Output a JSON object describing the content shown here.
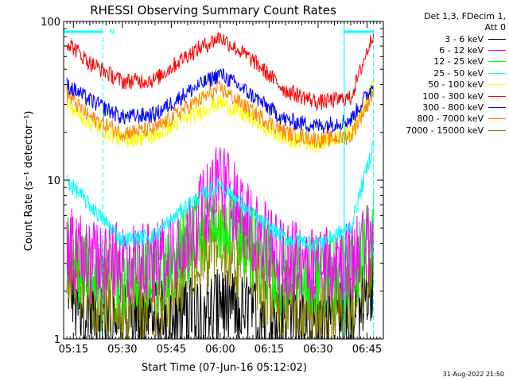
{
  "chart_data": {
    "type": "line",
    "title": "RHESSI Observing Summary Count Rates",
    "xlabel": "Start Time (07-Jun-16 05:12:02)",
    "ylabel": "Count Rate (s⁻¹ detector⁻¹)",
    "yscale": "log",
    "ylim": [
      1,
      100
    ],
    "xlim_minutes": [
      "05:12",
      "06:50"
    ],
    "x_ticks": [
      "05:15",
      "05:30",
      "05:45",
      "06:00",
      "06:15",
      "06:30",
      "06:45"
    ],
    "y_ticks": [
      "1",
      "10",
      "100"
    ],
    "legend_header": [
      "Det 1,3, FDecim 1,",
      "Att 0"
    ],
    "series": [
      {
        "name": "3 - 6 keV",
        "color": "#000000",
        "x": [
          "05:13",
          "05:20",
          "05:30",
          "05:40",
          "05:50",
          "06:00",
          "06:10",
          "06:20",
          "06:30",
          "06:40",
          "06:47"
        ],
        "values": [
          2.5,
          1.6,
          1.5,
          1.5,
          1.6,
          1.8,
          1.6,
          1.5,
          1.5,
          1.6,
          2.6
        ]
      },
      {
        "name": "6 - 12 keV",
        "color": "#ff00ff",
        "x": [
          "05:13",
          "05:20",
          "05:30",
          "05:40",
          "05:50",
          "06:00",
          "06:10",
          "06:20",
          "06:30",
          "06:40",
          "06:47"
        ],
        "values": [
          4.5,
          3.6,
          3.5,
          3.6,
          5.0,
          12,
          5.5,
          3.7,
          3.5,
          3.6,
          5.0
        ]
      },
      {
        "name": "12 - 25 keV",
        "color": "#00ff00",
        "x": [
          "05:13",
          "05:20",
          "05:30",
          "05:40",
          "05:50",
          "06:00",
          "06:10",
          "06:20",
          "06:30",
          "06:40",
          "06:47"
        ],
        "values": [
          4.0,
          3.0,
          2.8,
          2.9,
          4.5,
          7.0,
          4.5,
          3.0,
          2.9,
          3.0,
          5.5
        ]
      },
      {
        "name": "25 - 50 keV",
        "color": "#00ffff",
        "x": [
          "05:13",
          "05:20",
          "05:30",
          "05:40",
          "05:50",
          "06:00",
          "06:10",
          "06:20",
          "06:30",
          "06:40",
          "06:47"
        ],
        "values": [
          10,
          7.0,
          4.2,
          4.5,
          7.0,
          9.5,
          6.0,
          4.3,
          4.0,
          5.0,
          17
        ]
      },
      {
        "name": "50 - 100 keV",
        "color": "#ffff00",
        "x": [
          "05:13",
          "05:20",
          "05:30",
          "05:40",
          "05:50",
          "06:00",
          "06:10",
          "06:20",
          "06:30",
          "06:40",
          "06:47"
        ],
        "values": [
          30,
          23,
          18,
          19,
          25,
          31,
          24,
          18,
          17,
          20,
          40
        ]
      },
      {
        "name": "100 - 300 keV",
        "color": "#ff0000",
        "x": [
          "05:13",
          "05:20",
          "05:30",
          "05:40",
          "05:50",
          "06:00",
          "06:10",
          "06:20",
          "06:30",
          "06:40",
          "06:47"
        ],
        "values": [
          75,
          55,
          42,
          43,
          62,
          80,
          57,
          37,
          31,
          33,
          85
        ]
      },
      {
        "name": "300 - 800 keV",
        "color": "#0000ff",
        "x": [
          "05:13",
          "05:20",
          "05:30",
          "05:40",
          "05:50",
          "06:00",
          "06:10",
          "06:20",
          "06:30",
          "06:40",
          "06:47"
        ],
        "values": [
          40,
          32,
          25,
          26,
          36,
          47,
          34,
          24,
          22,
          24,
          40
        ]
      },
      {
        "name": "800 - 7000 keV",
        "color": "#ff8800",
        "x": [
          "05:13",
          "05:20",
          "05:30",
          "05:40",
          "05:50",
          "06:00",
          "06:10",
          "06:20",
          "06:30",
          "06:40",
          "06:47"
        ],
        "values": [
          35,
          25,
          20,
          21,
          29,
          38,
          27,
          20,
          18,
          19,
          36
        ]
      },
      {
        "name": "7000 - 15000 keV",
        "color": "#888800",
        "x": [
          "05:13",
          "05:20",
          "05:30",
          "05:40",
          "05:50",
          "06:00",
          "06:10",
          "06:20",
          "06:30",
          "06:40",
          "06:47"
        ],
        "values": [
          4.0,
          2.5,
          1.8,
          1.9,
          3.5,
          5.0,
          3.0,
          2.0,
          1.8,
          2.0,
          4.0
        ]
      }
    ],
    "annotations": [
      {
        "text": "N",
        "time": "05:24"
      }
    ],
    "vertical_markers": [
      "05:24",
      "06:38",
      "06:47"
    ],
    "grid": false,
    "legend_position": "right"
  },
  "footer": {
    "timestamp": "31-Aug-2022 21:50"
  }
}
